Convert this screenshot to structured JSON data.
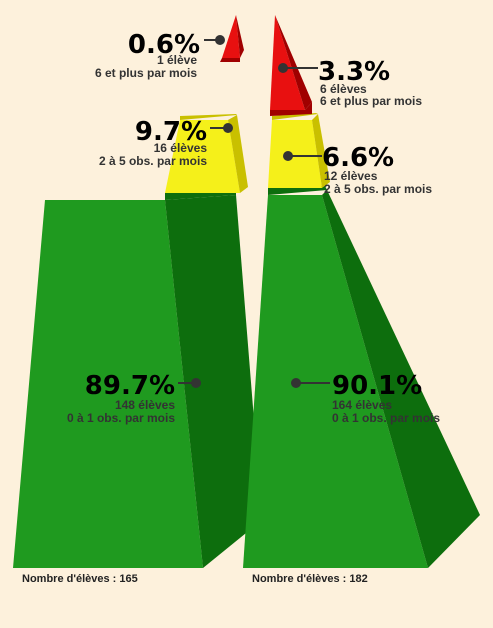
{
  "colors": {
    "background": "#fdf1dc",
    "green_front": "#1f9a1f",
    "green_side": "#0d6e0d",
    "yellow_front": "#f5f01a",
    "yellow_side": "#c9c000",
    "red_front": "#e81010",
    "red_side": "#a00000",
    "marker": "#333333"
  },
  "chart_data": {
    "type": "pyramid",
    "pyramids": [
      {
        "total_label": "Nombre d'élèves : 165",
        "segments": [
          {
            "level": "green",
            "percent": 89.7,
            "percent_label": "89.7%",
            "count_label": "148 élèves",
            "desc_label": "0 à 1 obs. par mois"
          },
          {
            "level": "yellow",
            "percent": 9.7,
            "percent_label": "9.7%",
            "count_label": "16 élèves",
            "desc_label": "2 à 5 obs. par mois"
          },
          {
            "level": "red",
            "percent": 0.6,
            "percent_label": "0.6%",
            "count_label": "1 élève",
            "desc_label": "6 et plus par mois"
          }
        ]
      },
      {
        "total_label": "Nombre d'élèves : 182",
        "segments": [
          {
            "level": "green",
            "percent": 90.1,
            "percent_label": "90.1%",
            "count_label": "164 élèves",
            "desc_label": "0 à 1 obs. par mois"
          },
          {
            "level": "yellow",
            "percent": 6.6,
            "percent_label": "6.6%",
            "count_label": "12 élèves",
            "desc_label": "2 à 5 obs. par mois"
          },
          {
            "level": "red",
            "percent": 3.3,
            "percent_label": "3.3%",
            "count_label": "6 élèves",
            "desc_label": "6 et plus par mois"
          }
        ]
      }
    ]
  }
}
